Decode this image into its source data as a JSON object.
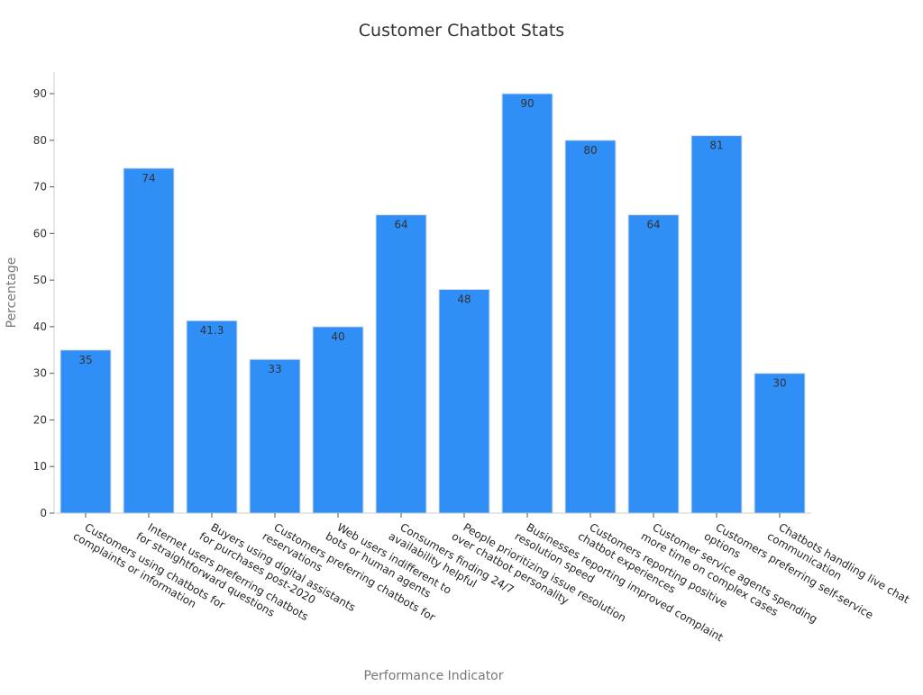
{
  "chart_data": {
    "type": "bar",
    "title": "Customer Chatbot Stats",
    "xlabel": "Performance Indicator",
    "ylabel": "Percentage",
    "ylim": [
      0,
      90
    ],
    "yticks": [
      0,
      10,
      20,
      30,
      40,
      50,
      60,
      70,
      80,
      90
    ],
    "grid": false,
    "legend": "none",
    "bar_color": "#2f8ff7",
    "bar_edge_color": "#d9e2ec",
    "categories": [
      [
        "Customers using chatbots for",
        "complaints or information"
      ],
      [
        "Internet users preferring chatbots",
        "for straightforward questions"
      ],
      [
        "Buyers using digital assistants",
        "for purchases post-2020"
      ],
      [
        "Customers preferring chatbots for",
        "reservations"
      ],
      [
        "Web users indifferent to",
        "bots or human agents"
      ],
      [
        "Consumers finding 24/7",
        "availability helpful"
      ],
      [
        "People prioritizing issue resolution",
        "over chatbot personality"
      ],
      [
        "Businesses reporting improved complaint",
        "resolution speed"
      ],
      [
        "Customers reporting positive",
        "chatbot experiences"
      ],
      [
        "Customer service agents spending",
        "more time on complex cases"
      ],
      [
        "Customers preferring self-service",
        "options"
      ],
      [
        "Chatbots handling live chat",
        "communication"
      ]
    ],
    "values": [
      35,
      74,
      41.3,
      33,
      40,
      64,
      48,
      90,
      80,
      64,
      81,
      30
    ],
    "data_labels": [
      "35",
      "74",
      "41.3",
      "33",
      "40",
      "64",
      "48",
      "90",
      "80",
      "64",
      "81",
      "30"
    ]
  }
}
